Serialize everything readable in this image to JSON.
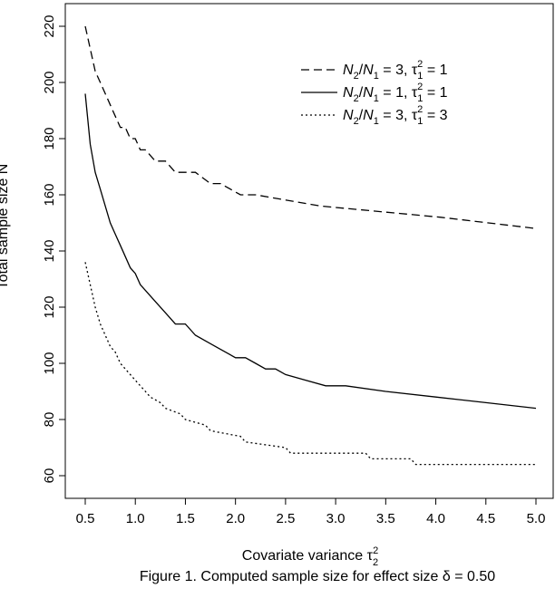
{
  "chart_data": {
    "type": "line",
    "xlabel_main": "Covariate variance τ",
    "xlabel_sub": "2",
    "xlabel_sup": "2",
    "ylabel": "Total sample size N",
    "caption": "Figure 1. Computed sample size for effect size δ = 0.50",
    "xlim": [
      0.5,
      5.0
    ],
    "ylim": [
      60,
      220
    ],
    "x_ticks": [
      "0.5",
      "1.0",
      "1.5",
      "2.0",
      "2.5",
      "3.0",
      "3.5",
      "4.0",
      "4.5",
      "5.0"
    ],
    "y_ticks": [
      "60",
      "80",
      "100",
      "120",
      "140",
      "160",
      "180",
      "200",
      "220"
    ],
    "legend_position": "top-right",
    "series": [
      {
        "name": "N2/N1 = 3, τ12 = 1",
        "legend": {
          "a": "N",
          "a_sub": "2",
          "b": "N",
          "b_sub": "1",
          "c": " = 3, τ",
          "c_sup": "2",
          "c_sub": "1",
          "d": " = 1"
        },
        "style": "dashed",
        "x": [
          0.5,
          0.55,
          0.6,
          0.65,
          0.7,
          0.75,
          0.8,
          0.85,
          0.9,
          0.95,
          1.0,
          1.05,
          1.1,
          1.2,
          1.3,
          1.4,
          1.6,
          1.75,
          1.85,
          2.05,
          2.2,
          2.85,
          4.05,
          5.0
        ],
        "y": [
          220,
          212,
          204,
          200,
          196,
          192,
          188,
          184,
          184,
          180,
          180,
          176,
          176,
          172,
          172,
          168,
          168,
          164,
          164,
          160,
          160,
          156,
          152,
          148
        ]
      },
      {
        "name": "N2/N1 = 1, τ12 = 1",
        "legend": {
          "a": "N",
          "a_sub": "2",
          "b": "N",
          "b_sub": "1",
          "c": " = 1, τ",
          "c_sup": "2",
          "c_sub": "1",
          "d": " = 1"
        },
        "style": "solid",
        "x": [
          0.5,
          0.55,
          0.6,
          0.65,
          0.7,
          0.75,
          0.8,
          0.85,
          0.9,
          0.95,
          1.0,
          1.05,
          1.1,
          1.2,
          1.3,
          1.4,
          1.5,
          1.6,
          1.7,
          1.8,
          1.9,
          2.0,
          2.1,
          2.2,
          2.3,
          2.4,
          2.5,
          2.7,
          2.9,
          3.1,
          3.5,
          4.0,
          4.5,
          5.0
        ],
        "y": [
          196,
          178,
          168,
          162,
          156,
          150,
          146,
          142,
          138,
          134,
          132,
          128,
          126,
          122,
          118,
          114,
          114,
          110,
          108,
          106,
          104,
          102,
          102,
          100,
          98,
          98,
          96,
          94,
          92,
          92,
          90,
          88,
          86,
          84
        ]
      },
      {
        "name": "N2/N1 = 3, τ12 = 3",
        "legend": {
          "a": "N",
          "a_sub": "2",
          "b": "N",
          "b_sub": "1",
          "c": " = 3, τ",
          "c_sup": "2",
          "c_sub": "1",
          "d": " = 3"
        },
        "style": "dotted",
        "x": [
          0.5,
          0.55,
          0.6,
          0.65,
          0.7,
          0.75,
          0.8,
          0.85,
          0.9,
          0.95,
          1.0,
          1.05,
          1.1,
          1.15,
          1.25,
          1.3,
          1.45,
          1.5,
          1.7,
          1.75,
          2.05,
          2.1,
          2.5,
          2.55,
          3.3,
          3.35,
          3.75,
          3.8,
          5.0
        ],
        "y": [
          136,
          128,
          120,
          114,
          110,
          106,
          104,
          100,
          98,
          96,
          94,
          92,
          90,
          88,
          86,
          84,
          82,
          80,
          78,
          76,
          74,
          72,
          70,
          68,
          68,
          66,
          66,
          64,
          64
        ]
      }
    ]
  }
}
